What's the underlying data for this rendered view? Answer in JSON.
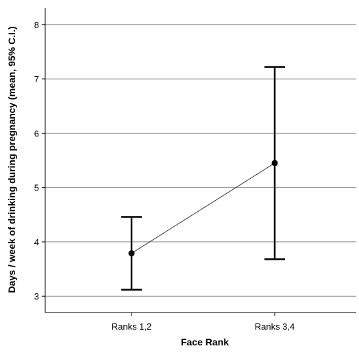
{
  "chart_data": {
    "type": "line",
    "title": "",
    "xlabel": "Face Rank",
    "ylabel": "Days / week of drinking during pregnancy (mean, 95% C.I.)",
    "categories": [
      "Ranks 1,2",
      "Ranks 3,4"
    ],
    "series": [
      {
        "values": [
          3.79,
          5.45
        ],
        "ci_lower": [
          3.12,
          3.68
        ],
        "ci_upper": [
          4.46,
          7.22
        ]
      }
    ],
    "ylim": [
      2.7,
      8.3
    ],
    "yticks": [
      "3",
      "4",
      "5",
      "6",
      "7",
      "8"
    ],
    "grid": "horizontal",
    "colors": {
      "line": "#333333",
      "marker": "#000000",
      "error_bar": "#000000",
      "grid": "#8c8c8c",
      "axis": "#000000"
    }
  }
}
